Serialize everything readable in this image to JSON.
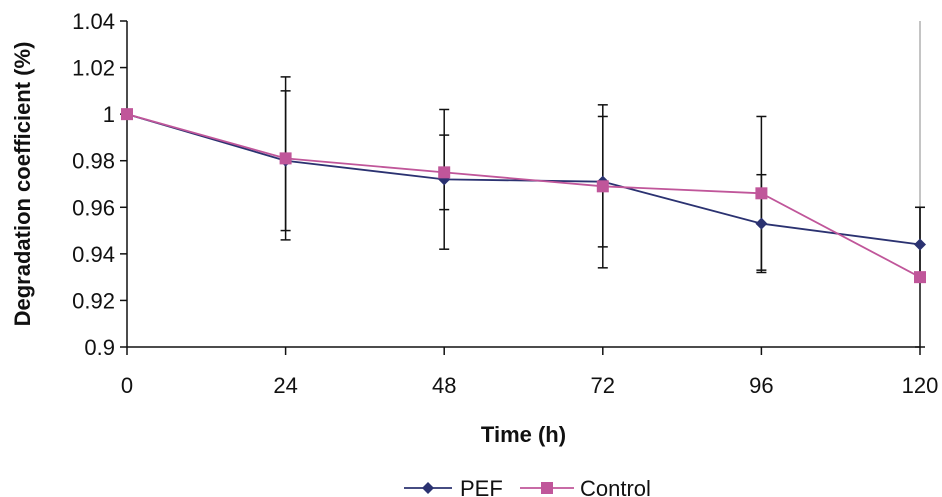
{
  "chart_data": {
    "type": "line",
    "xlabel": "Time (h)",
    "ylabel": "Degradation coefficient  (%)",
    "x": [
      0,
      24,
      48,
      72,
      96,
      120
    ],
    "x_ticks": [
      "0",
      "24",
      "48",
      "72",
      "96",
      "120"
    ],
    "ylim": [
      0.9,
      1.04
    ],
    "y_ticks": [
      "0.9",
      "0.92",
      "0.94",
      "0.96",
      "0.98",
      "1",
      "1.02",
      "1.04"
    ],
    "grid": false,
    "legend_position": "bottom",
    "series": [
      {
        "name": "PEF",
        "color": "#2b3271",
        "marker": "diamond",
        "values": [
          1.0,
          0.98,
          0.972,
          0.971,
          0.953,
          0.944
        ],
        "error": [
          0,
          0.03,
          0.03,
          0.028,
          0.021,
          0.016
        ]
      },
      {
        "name": "Control",
        "color": "#c0569a",
        "marker": "square",
        "values": [
          1.0,
          0.981,
          0.975,
          0.969,
          0.966,
          0.93
        ],
        "error": [
          0,
          0.035,
          0.016,
          0.035,
          0.033,
          0.03
        ]
      }
    ]
  }
}
